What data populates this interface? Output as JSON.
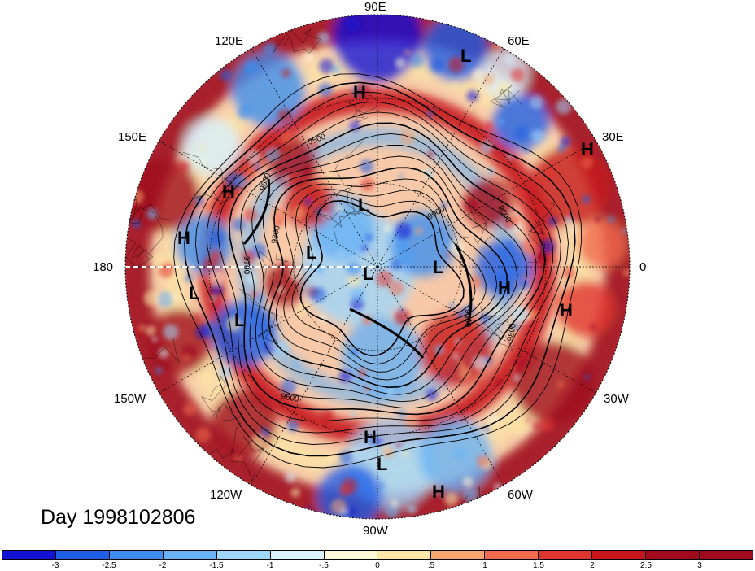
{
  "map": {
    "title": "Day 1998102806",
    "projection": "polar-stereographic north",
    "longitude_labels": [
      {
        "id": "lon-90e",
        "text": "90E"
      },
      {
        "id": "lon-120e",
        "text": "120E"
      },
      {
        "id": "lon-60e",
        "text": "60E"
      },
      {
        "id": "lon-150e",
        "text": "150E"
      },
      {
        "id": "lon-30e",
        "text": "30E"
      },
      {
        "id": "lon-180",
        "text": "180"
      },
      {
        "id": "lon-0",
        "text": "0"
      },
      {
        "id": "lon-150w",
        "text": "150W"
      },
      {
        "id": "lon-30w",
        "text": "30W"
      },
      {
        "id": "lon-120w",
        "text": "120W"
      },
      {
        "id": "lon-60w",
        "text": "60W"
      },
      {
        "id": "lon-90w",
        "text": "90W"
      }
    ],
    "pressure_centers": [
      "L",
      "H",
      "H",
      "H",
      "L",
      "H",
      "L",
      "L",
      "L",
      "L",
      "H",
      "L",
      "H",
      "H",
      "H",
      "L"
    ],
    "contour_labels": [
      "9500",
      "9600",
      "9700",
      "9800",
      "9900",
      "9000",
      "9600",
      "9800",
      "9600"
    ],
    "colors": {
      "background": "#ffffff",
      "palette": [
        "#1313d6",
        "#1e5fe6",
        "#3d8eef",
        "#68b2f5",
        "#9fd6fb",
        "#d8f1fc",
        "#fdf8d8",
        "#fce7a6",
        "#f9a670",
        "#f16b4c",
        "#e13630",
        "#c6161c",
        "#a00a1c"
      ]
    }
  },
  "colorbar": {
    "labels": [
      "-3",
      "-2.5",
      "-2",
      "-1.5",
      "-1",
      "-.5",
      "0",
      ".5",
      "1",
      "1.5",
      "2",
      "2.5",
      "3"
    ]
  }
}
